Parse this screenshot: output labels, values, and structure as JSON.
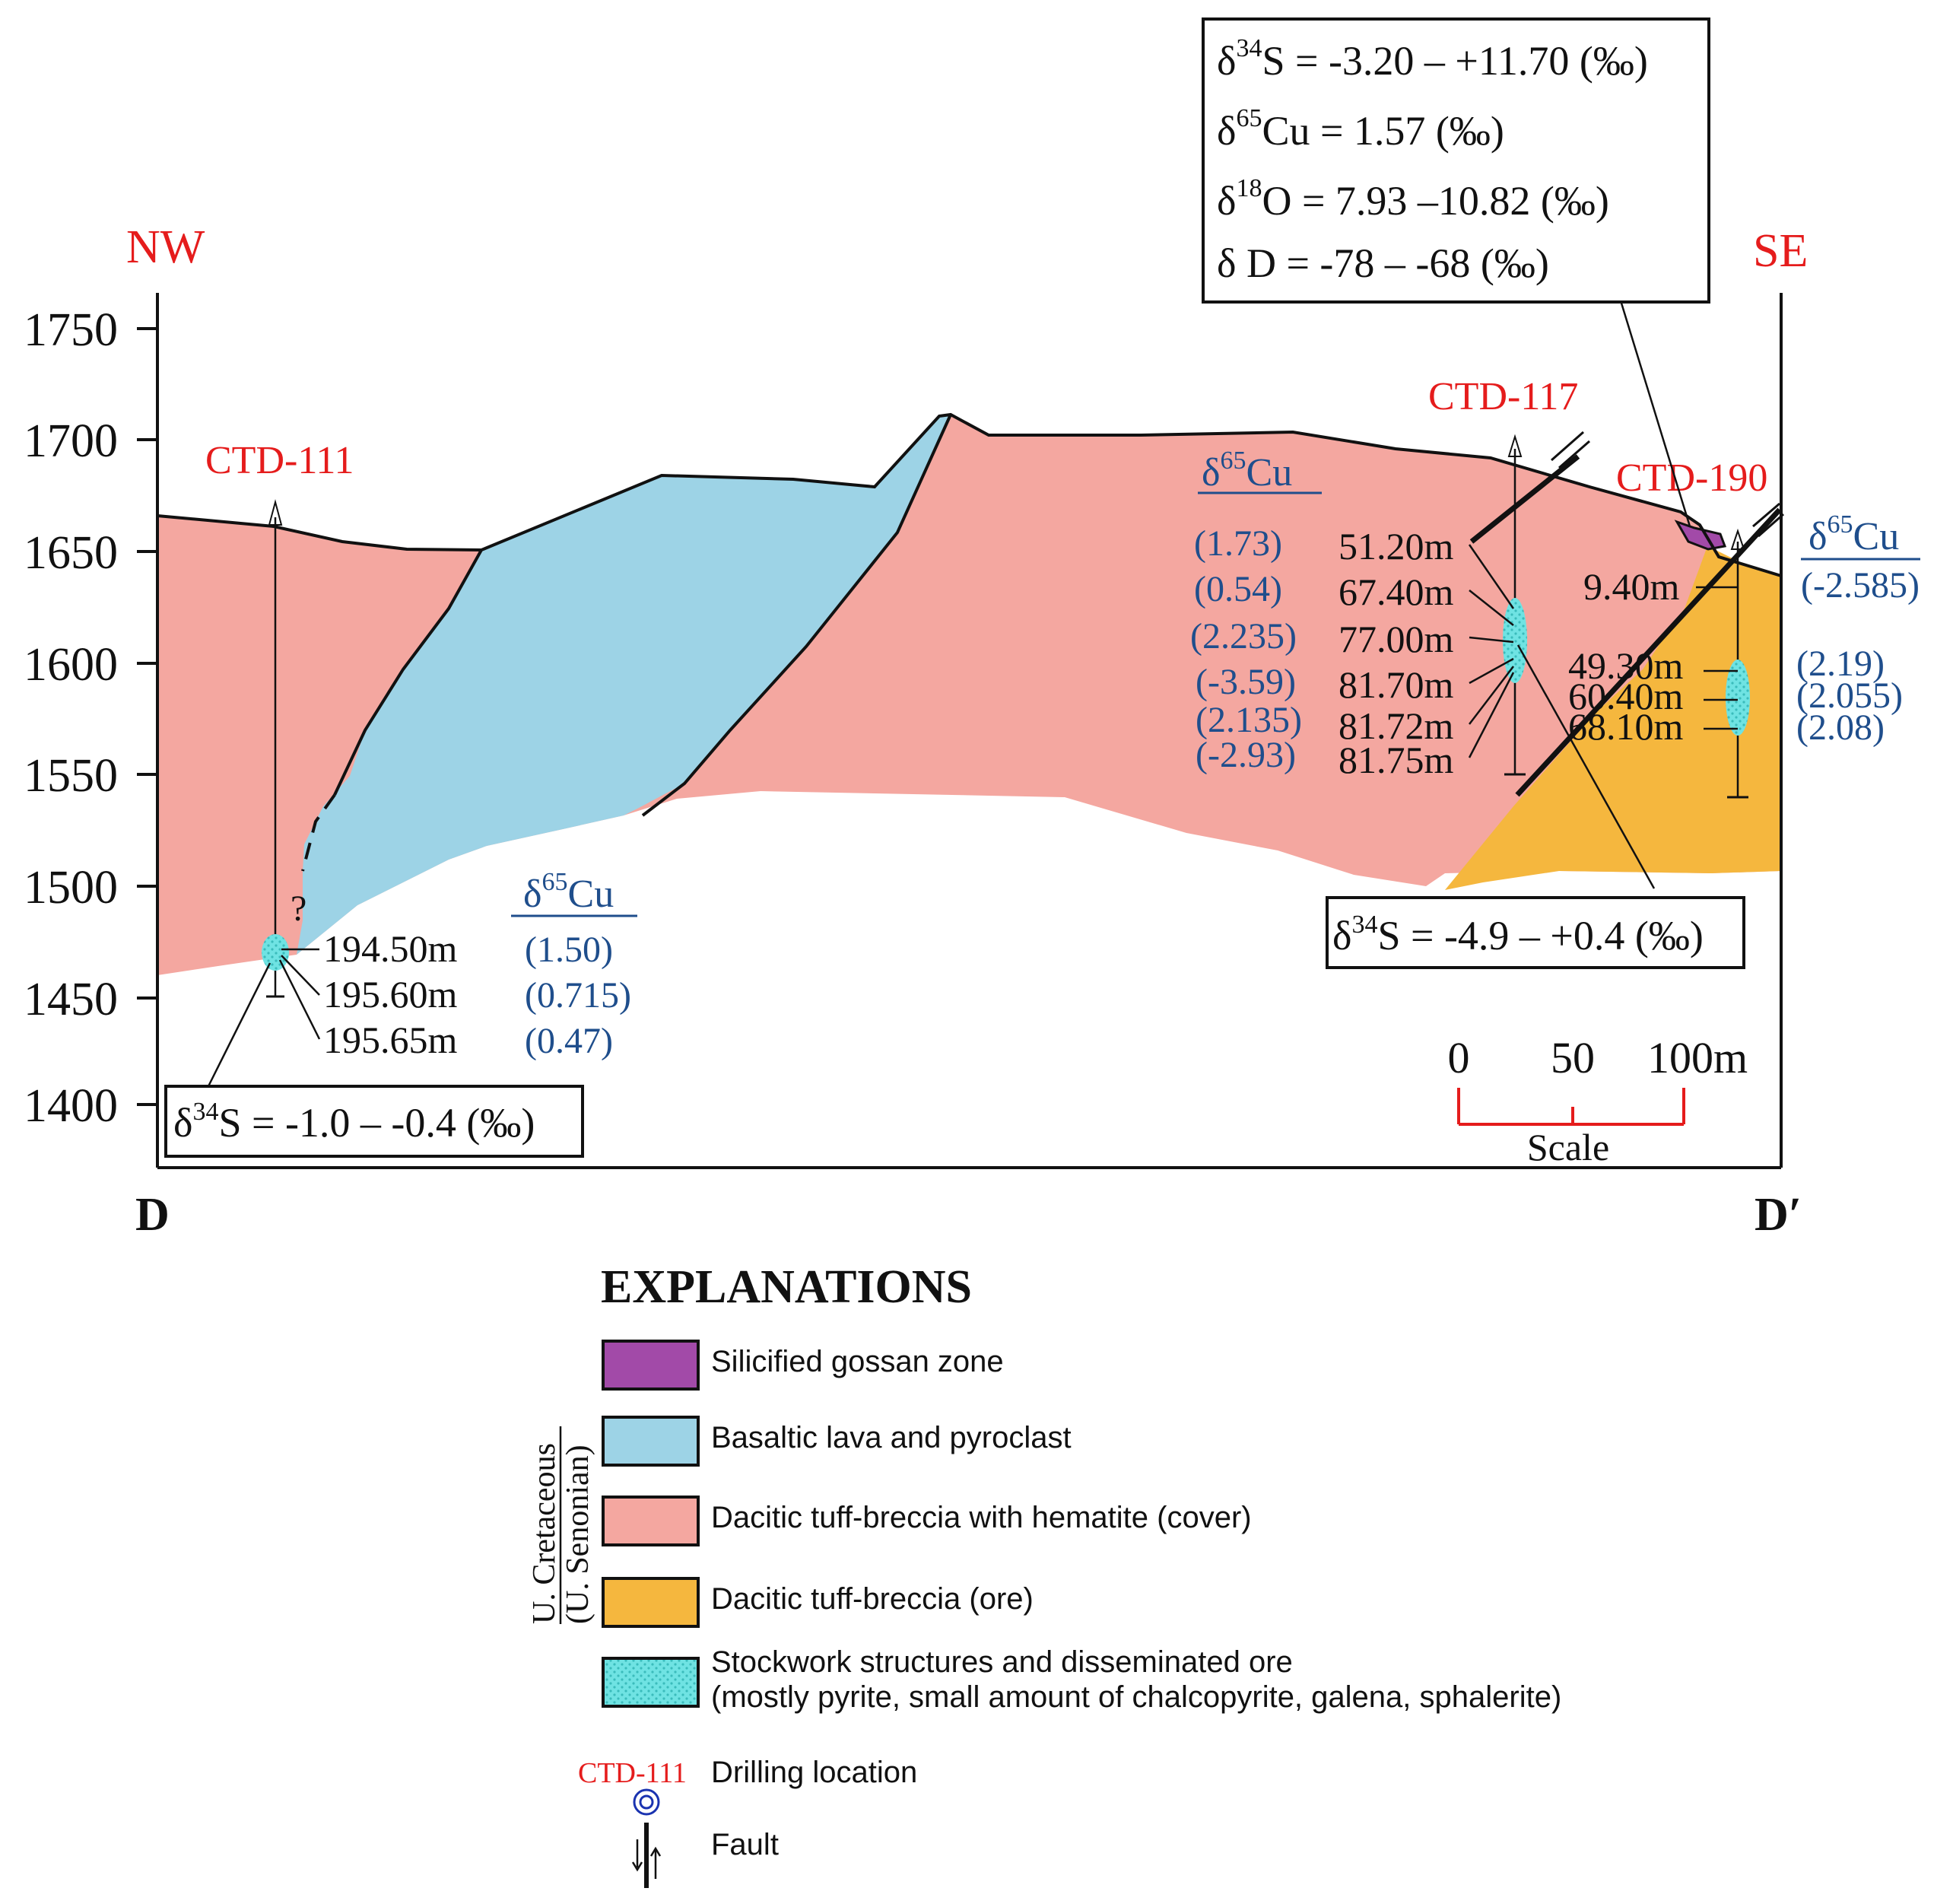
{
  "direction": {
    "left": "NW",
    "right": "SE"
  },
  "section_ends": {
    "left": "D",
    "right": "D′"
  },
  "y_axis": {
    "ticks": [
      "1750",
      "1700",
      "1650",
      "1600",
      "1550",
      "1500",
      "1450",
      "1400"
    ]
  },
  "colors": {
    "gossan": "#a24aa8",
    "basalt": "#9dd3e6",
    "dacitic_cover": "#f4a7a0",
    "dacitic_ore": "#f5b73e",
    "stockwork": "#6fe3e3",
    "drill_label": "#e51c1c",
    "isotope_value": "#1f4e8c"
  },
  "drillholes": [
    {
      "name": "CTD-111",
      "depths": [
        "194.50m",
        "195.60m",
        "195.65m"
      ],
      "cu_header": {
        "symbol": "δ",
        "mass": "65",
        "element": "Cu"
      },
      "cu_values": [
        "(1.50)",
        "(0.715)",
        "(0.47)"
      ],
      "question_mark": "?",
      "sulfur_box": {
        "symbol": "δ",
        "mass": "34",
        "text": "S = -1.0 – -0.4 (‰)"
      }
    },
    {
      "name": "CTD-117",
      "depths": [
        "51.20m",
        "67.40m",
        "77.00m",
        "81.70m",
        "81.72m",
        "81.75m"
      ],
      "cu_header": {
        "symbol": "δ",
        "mass": "65",
        "element": "Cu"
      },
      "cu_values": [
        "(1.73)",
        "(0.54)",
        "(2.235)",
        "(-3.59)",
        "(2.135)",
        "(-2.93)"
      ],
      "sulfur_box": {
        "symbol": "δ",
        "mass": "34",
        "text": "S = -4.9 – +0.4 (‰)"
      }
    },
    {
      "name": "CTD-190",
      "depths": [
        "9.40m",
        "49.30m",
        "60.40m",
        "68.10m"
      ],
      "cu_header": {
        "symbol": "δ",
        "mass": "65",
        "element": "Cu"
      },
      "cu_values": [
        "(-2.585)",
        "(2.19)",
        "(2.055)",
        "(2.08)"
      ]
    }
  ],
  "isotope_box_top": [
    {
      "symbol": "δ",
      "mass": "34",
      "text": "S = -3.20 – +11.70 (‰)"
    },
    {
      "symbol": "δ",
      "mass": "65",
      "text": "Cu = 1.57  (‰)"
    },
    {
      "symbol": "δ",
      "mass": "18",
      "text": "O = 7.93 –10.82 (‰)"
    },
    {
      "symbol": "δ",
      "mass": "",
      "text": " D = -78 – -68 (‰)"
    }
  ],
  "scale_bar": {
    "ticks": [
      "0",
      "50",
      "100m"
    ],
    "label": "Scale"
  },
  "legend": {
    "title": "EXPLANATIONS",
    "age_label_line1": "U. Cretaceous",
    "age_label_line2": "(U. Senonian)",
    "items": [
      {
        "key": "gossan",
        "label": "Silicified gossan zone"
      },
      {
        "key": "basalt",
        "label": "Basaltic lava and pyroclast"
      },
      {
        "key": "dacitic_cover",
        "label": "Dacitic tuff-breccia with hematite (cover)"
      },
      {
        "key": "dacitic_ore",
        "label": "Dacitic tuff-breccia (ore)"
      },
      {
        "key": "stockwork",
        "label_line1": "Stockwork structures and disseminated ore",
        "label_line2": "(mostly pyrite, small amount of chalcopyrite, galena, sphalerite)"
      }
    ],
    "drilling": {
      "sample_name": "CTD-111",
      "label": "Drilling location"
    },
    "fault": {
      "label": "Fault"
    }
  }
}
